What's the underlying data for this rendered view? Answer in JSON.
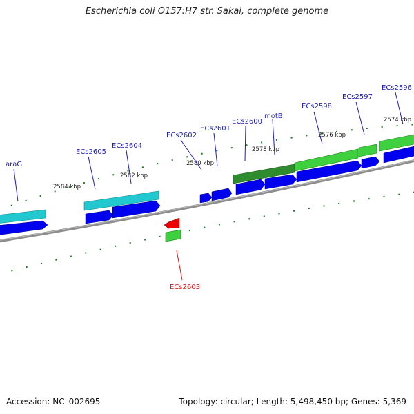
{
  "title": "Escherichia coli O157:H7 str. Sakai, complete genome",
  "footer": {
    "accession": "Accession: NC_002695",
    "summary": "Topology: circular; Length: 5,498,450 bp; Genes: 5,369"
  },
  "ticks": [
    {
      "label": "2584 kbp"
    },
    {
      "label": "2582 kbp"
    },
    {
      "label": "2580 kbp"
    },
    {
      "label": "2578 kbp"
    },
    {
      "label": "2576 kbp"
    },
    {
      "label": "2574 kbp"
    }
  ],
  "genes": [
    {
      "name": "araG",
      "color": "#1f1fb0"
    },
    {
      "name": "ECs2605",
      "color": "#1f1fb0"
    },
    {
      "name": "ECs2604",
      "color": "#1f1fb0"
    },
    {
      "name": "ECs2602",
      "color": "#1f1fb0"
    },
    {
      "name": "ECs2601",
      "color": "#1f1fb0"
    },
    {
      "name": "ECs2600",
      "color": "#1f1fb0"
    },
    {
      "name": "motB",
      "color": "#1f1fb0"
    },
    {
      "name": "ECs2598",
      "color": "#1f1fb0"
    },
    {
      "name": "ECs2597",
      "color": "#1f1fb0"
    },
    {
      "name": "ECs2596",
      "color": "#1f1fb0"
    },
    {
      "name": "ECs2603",
      "color": "#d11a1a"
    }
  ],
  "colors": {
    "cds_forward": "#0000ee",
    "cds_reverse_red": "#ee0000",
    "gene_teal": "#22c8d0",
    "gene_darkgreen": "#2e8b2e",
    "gene_lightgreen": "#3fd03f",
    "backbone": "#888888",
    "tick_green": "#1b7a1b"
  }
}
